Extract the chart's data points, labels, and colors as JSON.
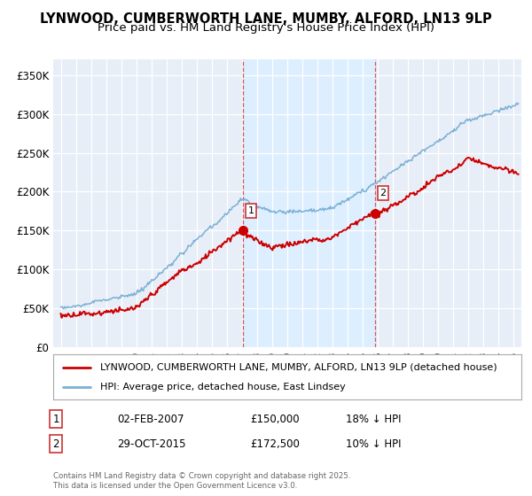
{
  "title": "LYNWOOD, CUMBERWORTH LANE, MUMBY, ALFORD, LN13 9LP",
  "subtitle": "Price paid vs. HM Land Registry's House Price Index (HPI)",
  "xlim": [
    1994.5,
    2025.5
  ],
  "ylim": [
    0,
    370000
  ],
  "yticks": [
    0,
    50000,
    100000,
    150000,
    200000,
    250000,
    300000,
    350000
  ],
  "ytick_labels": [
    "£0",
    "£50K",
    "£100K",
    "£150K",
    "£200K",
    "£250K",
    "£300K",
    "£350K"
  ],
  "xticks": [
    1995,
    1996,
    1997,
    1998,
    1999,
    2000,
    2001,
    2002,
    2003,
    2004,
    2005,
    2006,
    2007,
    2008,
    2009,
    2010,
    2011,
    2012,
    2013,
    2014,
    2015,
    2016,
    2017,
    2018,
    2019,
    2020,
    2021,
    2022,
    2023,
    2024,
    2025
  ],
  "sale1_x": 2007.08,
  "sale1_y": 150000,
  "sale1_label": "1",
  "sale2_x": 2015.83,
  "sale2_y": 172500,
  "sale2_label": "2",
  "vline1_x": 2007.08,
  "vline2_x": 2015.83,
  "highlight_color": "#ddeeff",
  "legend_line1_color": "#cc0000",
  "legend_line1_label": "LYNWOOD, CUMBERWORTH LANE, MUMBY, ALFORD, LN13 9LP (detached house)",
  "legend_line2_color": "#7ab0d4",
  "legend_line2_label": "HPI: Average price, detached house, East Lindsey",
  "annotation1_num": "1",
  "annotation1_date": "02-FEB-2007",
  "annotation1_price": "£150,000",
  "annotation1_hpi": "18% ↓ HPI",
  "annotation2_num": "2",
  "annotation2_date": "29-OCT-2015",
  "annotation2_price": "£172,500",
  "annotation2_hpi": "10% ↓ HPI",
  "footer": "Contains HM Land Registry data © Crown copyright and database right 2025.\nThis data is licensed under the Open Government Licence v3.0.",
  "bg_color": "#ffffff",
  "plot_bg_color": "#e8eef8",
  "grid_color": "#ffffff",
  "title_fontsize": 10.5,
  "subtitle_fontsize": 9.5,
  "hpi_seed": 10,
  "prop_seed": 7
}
